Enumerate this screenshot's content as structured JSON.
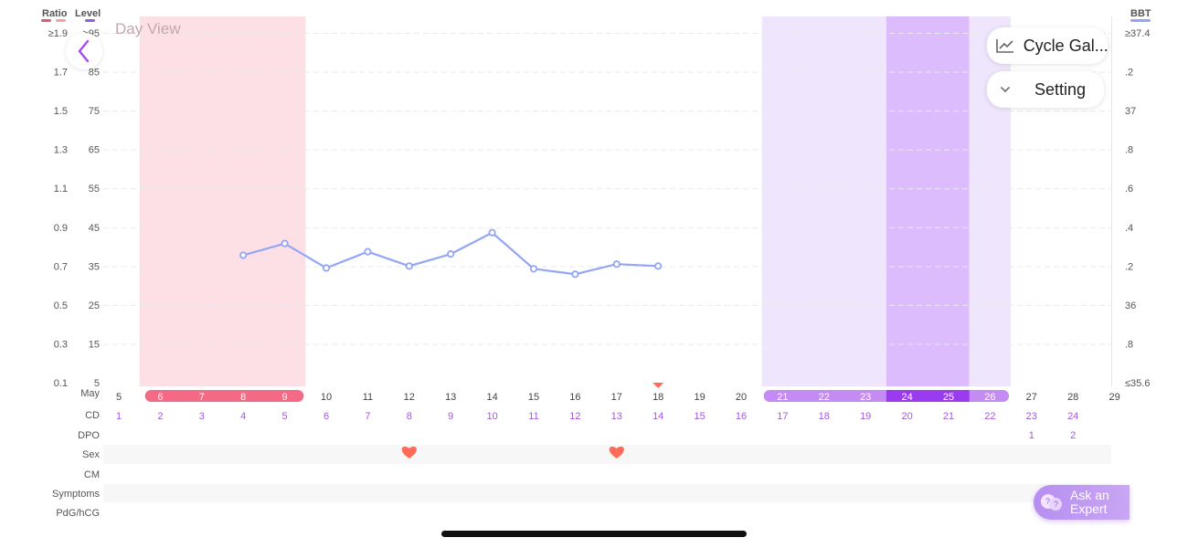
{
  "header": {
    "ratio_label": "Ratio",
    "level_label": "Level",
    "bbt_label": "BBT",
    "day_view": "Day View",
    "colors": {
      "ratio": "#e05a6e",
      "ratio2": "#f4a0a6",
      "level": "#9b59e8",
      "bbt": "#93a6f5"
    }
  },
  "buttons": {
    "back_icon": "chevron-left-icon",
    "cycle_gallery": "Cycle Gal...",
    "cycle_gallery_icon": "line-chart-icon",
    "setting": "Setting",
    "setting_icon": "chevron-down-icon",
    "ask_expert_line1": "Ask an",
    "ask_expert_line2": "Expert",
    "ask_expert_icon": "chat-bubbles-icon"
  },
  "chart_data": {
    "type": "line",
    "y_ratio_ticks": [
      "≥1.9",
      "1.7",
      "1.5",
      "1.3",
      "1.1",
      "0.9",
      "0.7",
      "0.5",
      "0.3",
      "0.1"
    ],
    "y_level_ticks": [
      ">95",
      "85",
      "75",
      "65",
      "55",
      "45",
      "35",
      "25",
      "15",
      "5"
    ],
    "y_bbt_ticks": [
      "≥37.4",
      ".2",
      "37",
      ".8",
      ".6",
      ".4",
      ".2",
      "36",
      ".8",
      "≤35.6"
    ],
    "ylim_level": [
      5,
      95
    ],
    "month_label": "May",
    "dates": [
      "5",
      "6",
      "7",
      "8",
      "9",
      "10",
      "11",
      "12",
      "13",
      "14",
      "15",
      "16",
      "17",
      "18",
      "19",
      "20",
      "21",
      "22",
      "23",
      "24",
      "25",
      "26",
      "27",
      "28",
      "29"
    ],
    "period_dates": [
      "6",
      "7",
      "8",
      "9"
    ],
    "fertile_dates": [
      "21",
      "22",
      "23"
    ],
    "peak_dates": [
      "24",
      "25"
    ],
    "fertile_late_dates": [
      "26"
    ],
    "today_date": "18",
    "cd_label": "CD",
    "cd_values": [
      "1",
      "2",
      "3",
      "4",
      "5",
      "6",
      "7",
      "8",
      "9",
      "10",
      "11",
      "12",
      "13",
      "14",
      "15",
      "16",
      "17",
      "18",
      "19",
      "20",
      "21",
      "22",
      "23",
      "24"
    ],
    "dpo_label": "DPO",
    "dpo_values": [
      {
        "date": "27",
        "value": "1"
      },
      {
        "date": "28",
        "value": "2"
      }
    ],
    "sex_label": "Sex",
    "sex_dates": [
      "12",
      "17"
    ],
    "cm_label": "CM",
    "symptoms_label": "Symptoms",
    "pdg_label": "PdG/hCG",
    "series": [
      {
        "values": [
          {
            "date": "8",
            "level": 37.8
          },
          {
            "date": "9",
            "level": 40.8
          },
          {
            "date": "10",
            "level": 34.5
          },
          {
            "date": "11",
            "level": 38.7
          },
          {
            "date": "12",
            "level": 35.0
          },
          {
            "date": "13",
            "level": 38.1
          },
          {
            "date": "14",
            "level": 43.6
          },
          {
            "date": "15",
            "level": 34.3
          },
          {
            "date": "16",
            "level": 32.9
          },
          {
            "date": "17",
            "level": 35.5
          },
          {
            "date": "18",
            "level": 35.0
          }
        ]
      }
    ],
    "colors": {
      "line": "#93a6f5",
      "period_band": "#fde0e5",
      "period_chip": "#f46a86",
      "fertile_band": "#efe5fc",
      "peak_band": "#dcbcfc",
      "fertile_chip": "#c48cf3",
      "peak_chip": "#9a3bf0",
      "heart": "#ff6b57",
      "today_marker": "#ff6b57",
      "cd_text": "#a25ad8"
    }
  }
}
